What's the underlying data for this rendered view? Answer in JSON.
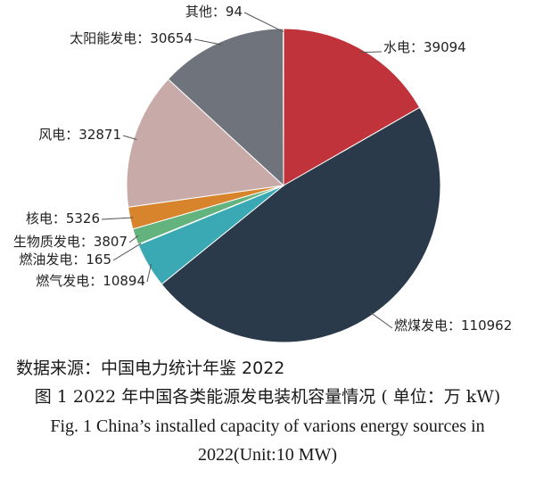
{
  "chart_data": {
    "type": "pie",
    "slices": [
      {
        "label": "水电",
        "value": 39094,
        "color": "#c0333a"
      },
      {
        "label": "燃煤发电",
        "value": 110962,
        "color": "#2b3a4a"
      },
      {
        "label": "燃气发电",
        "value": 10894,
        "color": "#3aa9b3"
      },
      {
        "label": "燃油发电",
        "value": 165,
        "color": "#c9725a"
      },
      {
        "label": "生物质发电",
        "value": 3807,
        "color": "#63b37e"
      },
      {
        "label": "核电",
        "value": 5326,
        "color": "#d7842c"
      },
      {
        "label": "风电",
        "value": 32871,
        "color": "#c8aaa9"
      },
      {
        "label": "太阳能发电",
        "value": 30654,
        "color": "#6f737c"
      },
      {
        "label": "其他",
        "value": 94,
        "color": "#8a8f96"
      }
    ],
    "label_separator": "："
  },
  "captions": {
    "source": "数据来源：中国电力统计年鉴 2022",
    "cn": "图 1  2022 年中国各类能源发电装机容量情况 ( 单位：万 kW)",
    "en": "Fig. 1  China’s installed capacity of varions energy sources in 2022(Unit:10 MW)"
  }
}
